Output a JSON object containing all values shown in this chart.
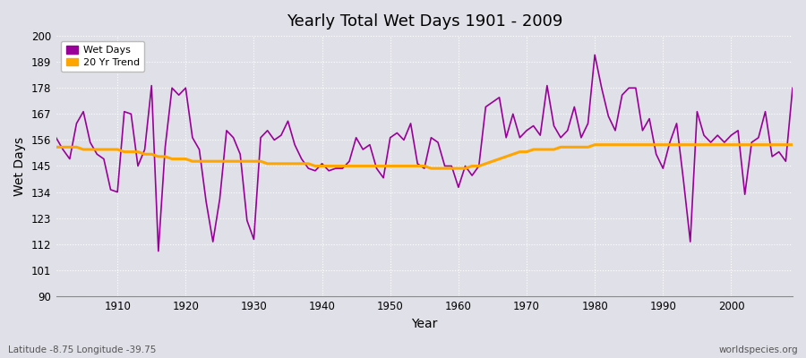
{
  "title": "Yearly Total Wet Days 1901 - 2009",
  "xlabel": "Year",
  "ylabel": "Wet Days",
  "ylim": [
    90,
    200
  ],
  "yticks": [
    90,
    101,
    112,
    123,
    134,
    145,
    156,
    167,
    178,
    189,
    200
  ],
  "xlim": [
    1901,
    2009
  ],
  "xticks": [
    1910,
    1920,
    1930,
    1940,
    1950,
    1960,
    1970,
    1980,
    1990,
    2000
  ],
  "wet_days_color": "#990099",
  "trend_color": "#FFA500",
  "fig_bg_color": "#E0E0E8",
  "plot_bg_color": "#E0E0E8",
  "grid_color": "#FFFFFF",
  "legend_wet": "Wet Days",
  "legend_trend": "20 Yr Trend",
  "bottom_left_text": "Latitude -8.75 Longitude -39.75",
  "bottom_right_text": "worldspecies.org",
  "years": [
    1901,
    1902,
    1903,
    1904,
    1905,
    1906,
    1907,
    1908,
    1909,
    1910,
    1911,
    1912,
    1913,
    1914,
    1915,
    1916,
    1917,
    1918,
    1919,
    1920,
    1921,
    1922,
    1923,
    1924,
    1925,
    1926,
    1927,
    1928,
    1929,
    1930,
    1931,
    1932,
    1933,
    1934,
    1935,
    1936,
    1937,
    1938,
    1939,
    1940,
    1941,
    1942,
    1943,
    1944,
    1945,
    1946,
    1947,
    1948,
    1949,
    1950,
    1951,
    1952,
    1953,
    1954,
    1955,
    1956,
    1957,
    1958,
    1959,
    1960,
    1961,
    1962,
    1963,
    1964,
    1965,
    1966,
    1967,
    1968,
    1969,
    1970,
    1971,
    1972,
    1973,
    1974,
    1975,
    1976,
    1977,
    1978,
    1979,
    1980,
    1981,
    1982,
    1983,
    1984,
    1985,
    1986,
    1987,
    1988,
    1989,
    1990,
    1991,
    1992,
    1993,
    1994,
    1995,
    1996,
    1997,
    1998,
    1999,
    2000,
    2001,
    2002,
    2003,
    2004,
    2005,
    2006,
    2007,
    2008,
    2009
  ],
  "wet_days": [
    157,
    152,
    148,
    163,
    168,
    155,
    150,
    148,
    135,
    134,
    168,
    167,
    145,
    152,
    179,
    109,
    153,
    178,
    175,
    178,
    157,
    152,
    130,
    113,
    131,
    160,
    157,
    150,
    122,
    114,
    157,
    160,
    156,
    158,
    164,
    154,
    148,
    144,
    143,
    146,
    143,
    144,
    144,
    147,
    157,
    152,
    154,
    144,
    140,
    157,
    159,
    156,
    163,
    146,
    144,
    157,
    155,
    145,
    145,
    136,
    145,
    141,
    145,
    170,
    172,
    174,
    157,
    167,
    157,
    160,
    162,
    158,
    179,
    162,
    157,
    160,
    170,
    157,
    163,
    192,
    178,
    166,
    160,
    175,
    178,
    178,
    160,
    165,
    150,
    144,
    155,
    163,
    139,
    113,
    168,
    158,
    155,
    158,
    155,
    158,
    160,
    133,
    155,
    157,
    168,
    149,
    151,
    147,
    178
  ],
  "trend_values": [
    153,
    153,
    153,
    153,
    152,
    152,
    152,
    152,
    152,
    152,
    151,
    151,
    151,
    150,
    150,
    149,
    149,
    148,
    148,
    148,
    147,
    147,
    147,
    147,
    147,
    147,
    147,
    147,
    147,
    147,
    147,
    146,
    146,
    146,
    146,
    146,
    146,
    146,
    145,
    145,
    145,
    145,
    145,
    145,
    145,
    145,
    145,
    145,
    145,
    145,
    145,
    145,
    145,
    145,
    145,
    144,
    144,
    144,
    144,
    144,
    144,
    145,
    145,
    146,
    147,
    148,
    149,
    150,
    151,
    151,
    152,
    152,
    152,
    152,
    153,
    153,
    153,
    153,
    153,
    154,
    154,
    154,
    154,
    154,
    154,
    154,
    154,
    154,
    154,
    154,
    154,
    154,
    154,
    154,
    154,
    154,
    154,
    154,
    154,
    154,
    154,
    154,
    154,
    154,
    154,
    154,
    154,
    154,
    154
  ]
}
